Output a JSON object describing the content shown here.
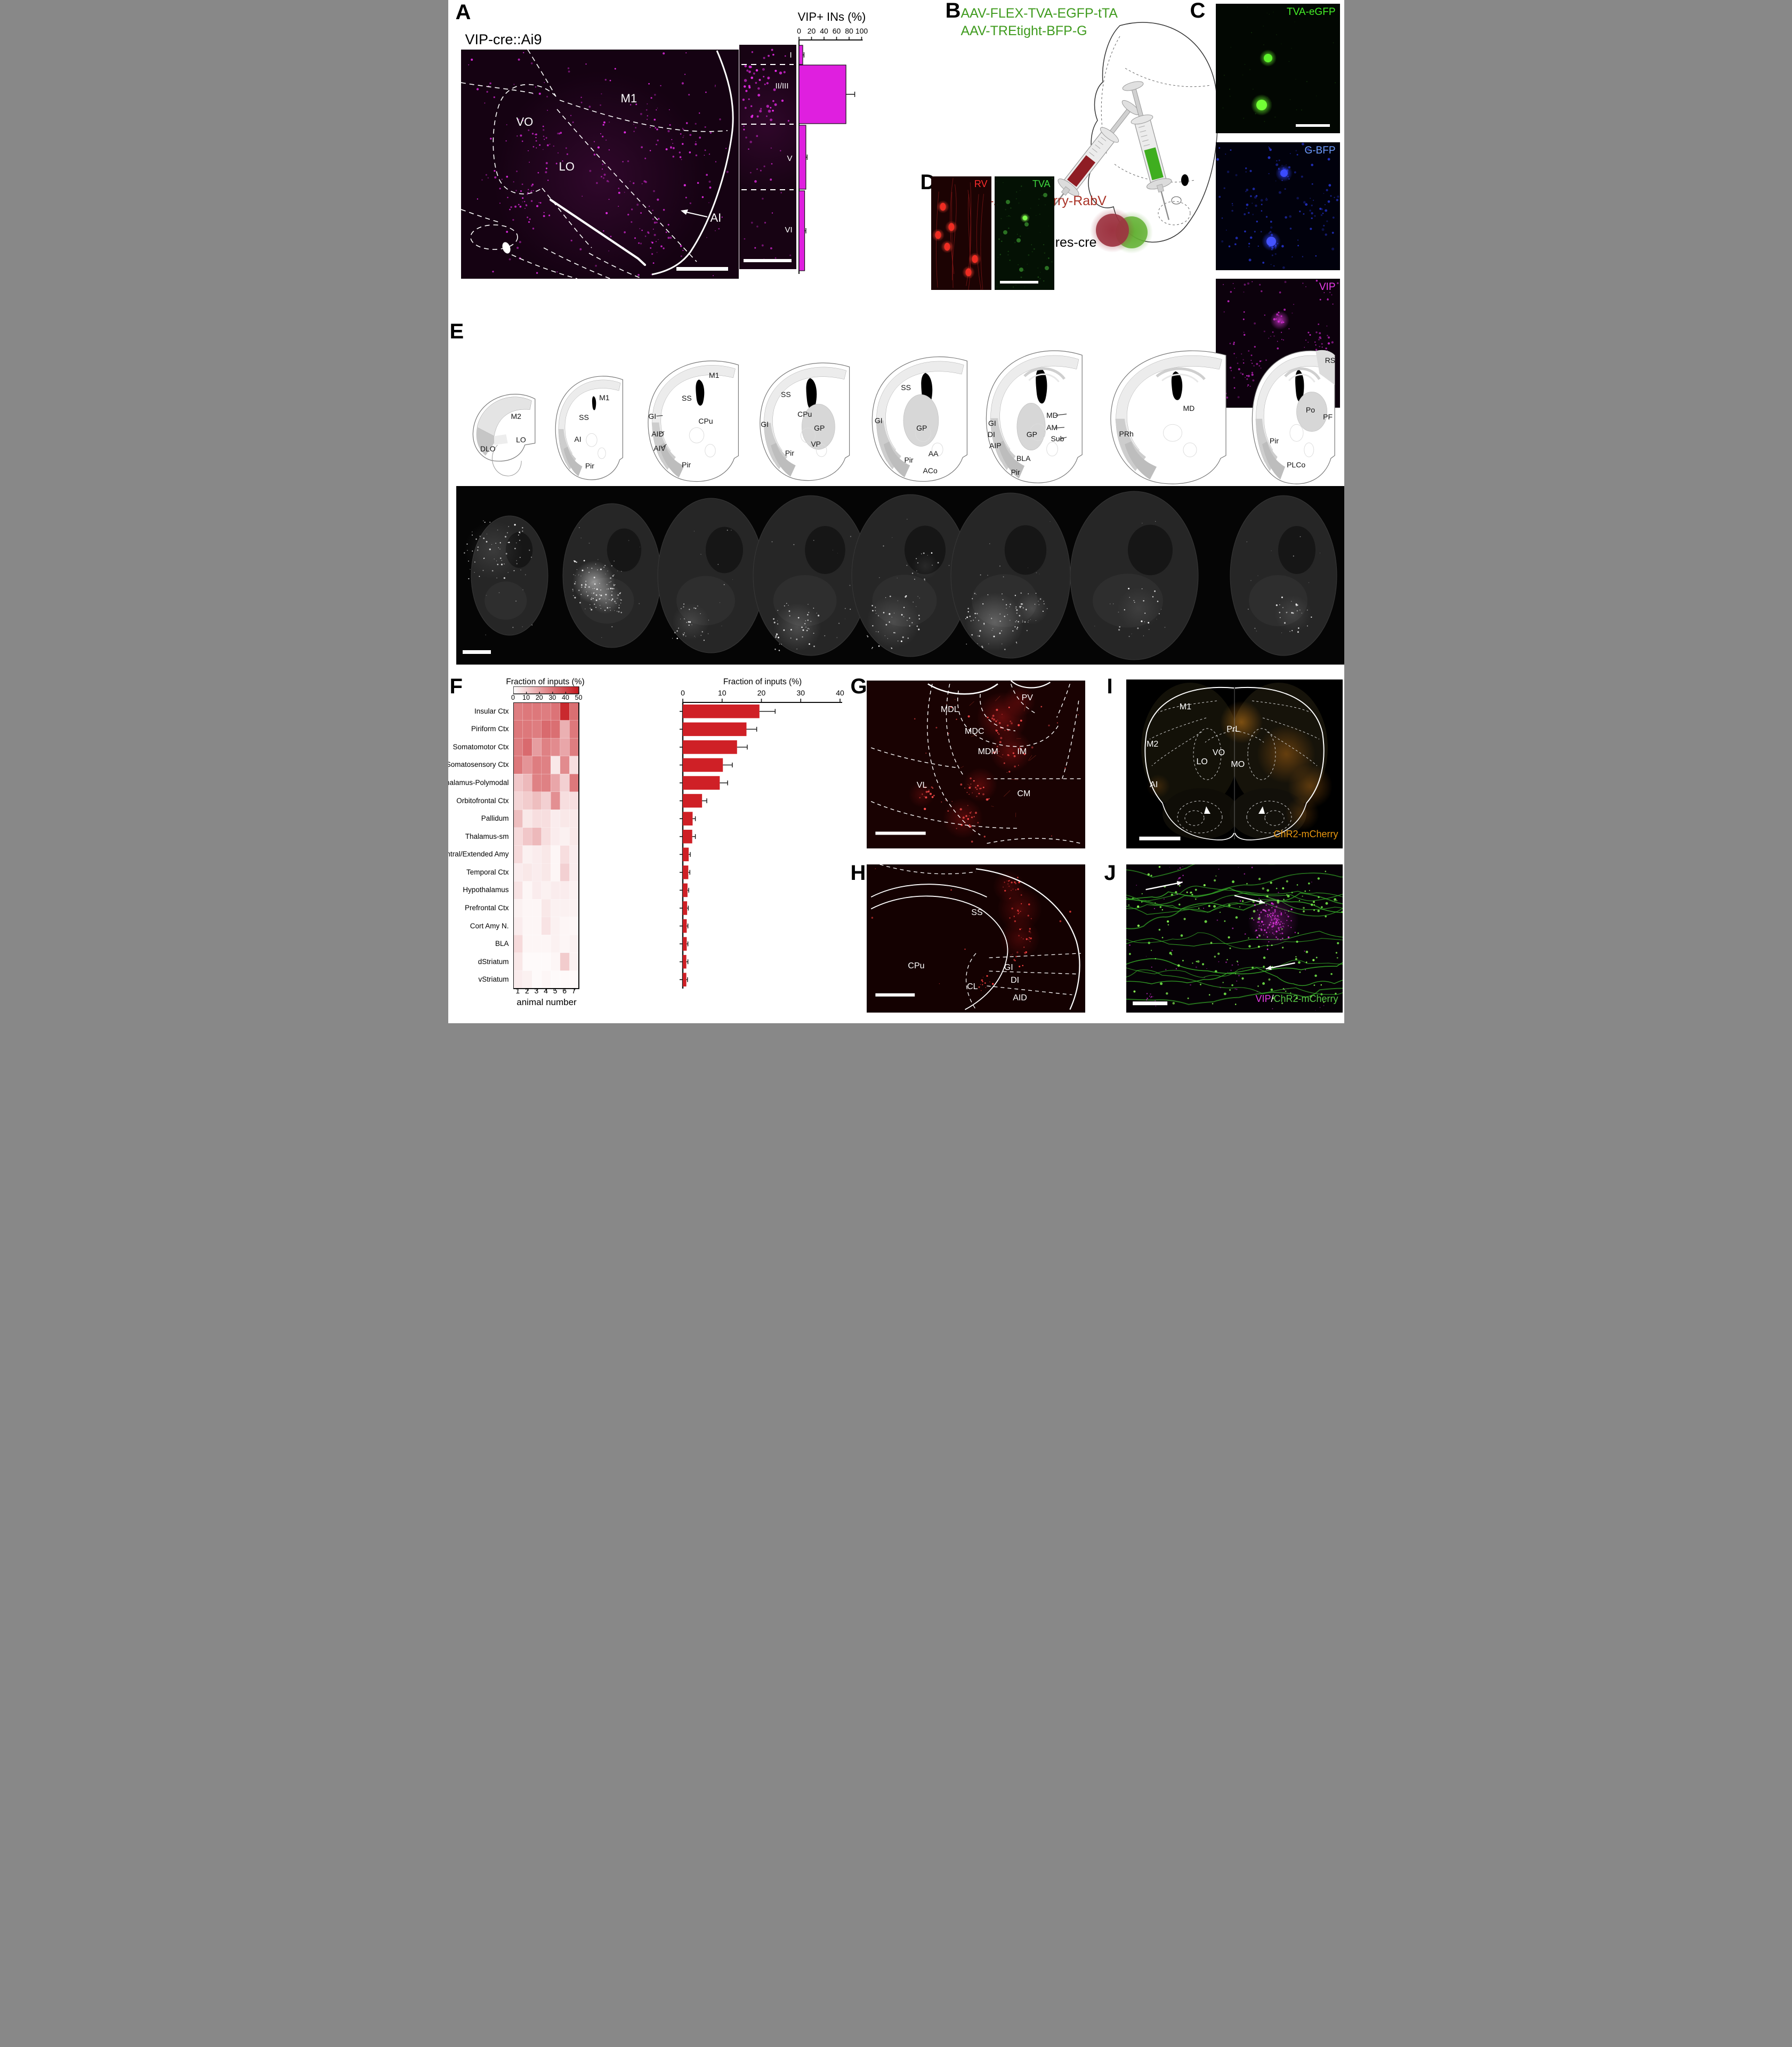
{
  "panelA": {
    "letter": "A",
    "title": "VIP-cre::Ai9",
    "region_labels": [
      "VO",
      "M1",
      "LO",
      "AI"
    ],
    "layer_labels": [
      "I",
      "II/III",
      "V",
      "VI"
    ],
    "chart_title": "VIP+ INs (%)",
    "dot_color": "#e02ae0",
    "bar_color": "#df1fdf"
  },
  "panelB": {
    "letter": "B",
    "aav_line1": "AAV-FLEX-TVA-EGFP-tTA",
    "aav_line2": "AAV-TREtight-BFP-G",
    "rabv_text": "EnvA-ΔG-mCherry-RabV",
    "mouse_line": "VIP-ires-cre",
    "green_color": "#3f9b1e",
    "red_color": "#a93226"
  },
  "panelC": {
    "letter": "C",
    "images": [
      {
        "label": "TVA-eGFP",
        "label_color": "#45ef28"
      },
      {
        "label": "G-BFP",
        "label_color": "#6f9dff"
      },
      {
        "label": "VIP",
        "label_color": "#ea3cea"
      }
    ]
  },
  "panelD": {
    "letter": "D",
    "images": [
      {
        "label": "RV",
        "label_color": "#ff2d2d"
      },
      {
        "label": "TVA",
        "label_color": "#3fd83f"
      }
    ]
  },
  "panelE": {
    "letter": "E",
    "sections": [
      {
        "labels": [
          "M2",
          "LO",
          "DLO"
        ]
      },
      {
        "labels": [
          "M1",
          "SS",
          "AI",
          "Pir"
        ]
      },
      {
        "labels": [
          "M1",
          "SS",
          "GI",
          "AID",
          "AIV",
          "CPu",
          "Pir"
        ]
      },
      {
        "labels": [
          "SS",
          "CPu",
          "GI",
          "GP",
          "VP",
          "Pir"
        ]
      },
      {
        "labels": [
          "SS",
          "GI",
          "GP",
          "Pir",
          "AA",
          "ACo"
        ]
      },
      {
        "labels": [
          "GI",
          "DI",
          "AIP",
          "GP",
          "MD",
          "AM",
          "Sub",
          "BLA",
          "Pir"
        ]
      },
      {
        "labels": [
          "PRh",
          "MD"
        ]
      },
      {
        "labels": [
          "RS",
          "Po",
          "PF",
          "Pir",
          "PLCo"
        ]
      }
    ]
  },
  "panelF": {
    "letter": "F",
    "heatmap_title": "Fraction of inputs (%)",
    "bar_title": "Fraction of inputs (%)",
    "xlabel": "animal number",
    "columns": [
      "1",
      "2",
      "3",
      "4",
      "5",
      "6",
      "7"
    ],
    "heat_color": "#c4161c",
    "bar_color": "#cf2026"
  },
  "panelG": {
    "letter": "G",
    "labels": [
      "PV",
      "MDL",
      "MDC",
      "MDM",
      "IM",
      "VL",
      "CM"
    ]
  },
  "panelH": {
    "letter": "H",
    "labels": [
      "SS",
      "CPu",
      "GI",
      "DI",
      "CL",
      "AID"
    ]
  },
  "panelI": {
    "letter": "I",
    "labels": [
      "M1",
      "M2",
      "PrL",
      "LO",
      "VO",
      "MO",
      "AI"
    ],
    "tag": "ChR2-mCherry",
    "tag_color": "#e8960f"
  },
  "panelJ": {
    "letter": "J",
    "tag_parts": [
      {
        "text": "VIP",
        "color": "#e23ce2"
      },
      {
        "text": "/",
        "color": "#ffffff"
      },
      {
        "text": "ChR2-mCherry",
        "color": "#57c947"
      }
    ]
  },
  "chart_data": [
    {
      "id": "vip_layers",
      "type": "bar",
      "orientation": "horizontal",
      "title": "VIP+ INs (%)",
      "categories": [
        "I",
        "II/III",
        "V",
        "VI"
      ],
      "values": [
        6,
        75,
        11,
        9
      ],
      "errors": [
        2,
        14,
        2,
        2
      ],
      "xlim": [
        0,
        100
      ],
      "ticks": [
        0,
        20,
        40,
        60,
        80,
        100
      ],
      "bar_color": "#df1fdf",
      "legend": "none",
      "grid": false
    },
    {
      "id": "inputs_heatmap",
      "type": "heatmap",
      "title": "Fraction of inputs (%)",
      "xlabel": "animal number",
      "rows": [
        "Insular Ctx",
        "Piriform Ctx",
        "Somatomotor Ctx",
        "Somatosensory Ctx",
        "Thalamus-Polymodal",
        "Orbitofrontal Ctx",
        "Pallidum",
        "Thalamus-sm",
        "Central/Extended Amy",
        "Temporal Ctx",
        "Hypothalamus",
        "Prefrontal Ctx",
        "Cort Amy N.",
        "BLA",
        "dStriatum",
        "vStriatum"
      ],
      "columns": [
        1,
        2,
        3,
        4,
        5,
        6,
        7
      ],
      "scale": {
        "min": 0,
        "max": 50,
        "ticks": [
          0,
          10,
          20,
          30,
          40,
          50
        ]
      },
      "values": [
        [
          28,
          29,
          29,
          28,
          30,
          46,
          31
        ],
        [
          29,
          29,
          28,
          32,
          31,
          17,
          29
        ],
        [
          28,
          32,
          21,
          27,
          25,
          19,
          28
        ],
        [
          29,
          23,
          28,
          27,
          5,
          25,
          7
        ],
        [
          12,
          15,
          27,
          27,
          19,
          10,
          29
        ],
        [
          9,
          11,
          14,
          10,
          24,
          7,
          7
        ],
        [
          14,
          5,
          7,
          7,
          4,
          5,
          5
        ],
        [
          8,
          12,
          15,
          7,
          4,
          3,
          5
        ],
        [
          8,
          3,
          4,
          5,
          2,
          7,
          4
        ],
        [
          4,
          5,
          4,
          5,
          2,
          10,
          4
        ],
        [
          6,
          2,
          4,
          3,
          4,
          4,
          3
        ],
        [
          3,
          2,
          2,
          5,
          3,
          3,
          3
        ],
        [
          4,
          2,
          2,
          6,
          3,
          2,
          2
        ],
        [
          8,
          2,
          2,
          2,
          3,
          2,
          3
        ],
        [
          5,
          1,
          1,
          1,
          2,
          11,
          3
        ],
        [
          4,
          3,
          1,
          2,
          1,
          1,
          1
        ]
      ]
    },
    {
      "id": "inputs_bar",
      "type": "bar",
      "orientation": "horizontal",
      "title": "Fraction of inputs (%)",
      "categories": [
        "Insular Ctx",
        "Piriform Ctx",
        "Somatomotor Ctx",
        "Somatosensory Ctx",
        "Thalamus-Polymodal",
        "Orbitofrontal Ctx",
        "Pallidum",
        "Thalamus-sm",
        "Central/Extended Amy",
        "Temporal Ctx",
        "Hypothalamus",
        "Prefrontal Ctx",
        "Cort Amy N.",
        "BLA",
        "dStriatum",
        "vStriatum"
      ],
      "values": [
        19.5,
        16.2,
        13.8,
        10.2,
        9.4,
        4.9,
        2.5,
        2.4,
        1.5,
        1.4,
        1.2,
        1.1,
        1.0,
        1.0,
        0.9,
        0.9
      ],
      "errors": [
        4.0,
        2.6,
        2.6,
        2.4,
        2.0,
        1.2,
        0.7,
        0.8,
        0.4,
        0.4,
        0.3,
        0.3,
        0.3,
        0.3,
        0.4,
        0.3
      ],
      "xlim": [
        0,
        40
      ],
      "ticks": [
        0,
        10,
        20,
        30,
        40
      ],
      "bar_color": "#cf2026",
      "legend": "none",
      "grid": false
    }
  ]
}
